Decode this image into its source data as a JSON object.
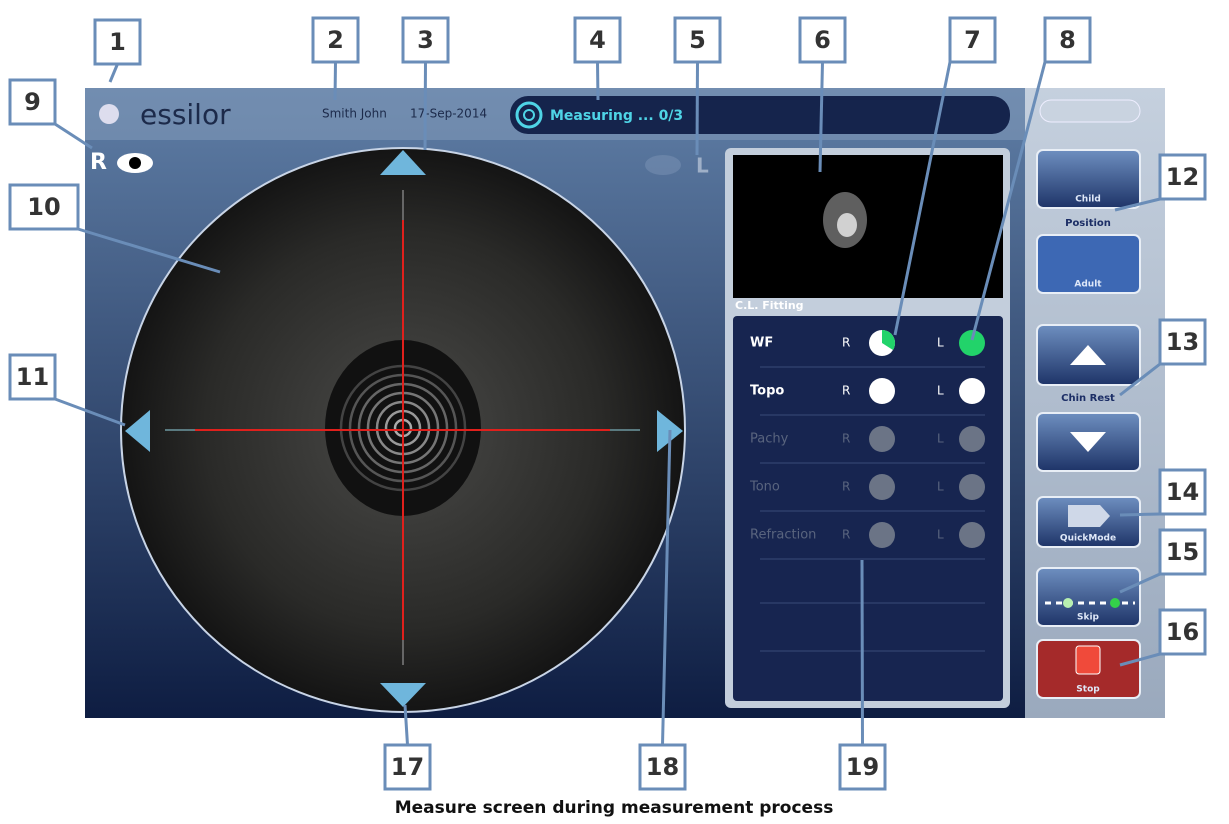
{
  "callouts": [
    "1",
    "2",
    "3",
    "4",
    "5",
    "6",
    "7",
    "8",
    "9",
    "10",
    "11",
    "12",
    "13",
    "14",
    "15",
    "16",
    "17",
    "18",
    "19"
  ],
  "header": {
    "logo": "essilor",
    "patient": "Smith John",
    "date": "17-Sep-2014",
    "status": "Measuring ... 0/3"
  },
  "eyes": {
    "right": "R",
    "left": "L"
  },
  "preview_label": "C.L. Fitting",
  "measurements": [
    {
      "name": "WF",
      "right": "R",
      "left": "L"
    },
    {
      "name": "Topo",
      "right": "R",
      "left": "L"
    },
    {
      "name": "Pachy",
      "right": "R",
      "left": "L"
    },
    {
      "name": "Tono",
      "right": "R",
      "left": "L"
    },
    {
      "name": "Refraction",
      "right": "R",
      "left": "L"
    }
  ],
  "side_buttons": {
    "child": "Child",
    "position": "Position",
    "adult": "Adult",
    "chin_rest": "Chin Rest",
    "quick_mode": "QuickMode",
    "skip": "Skip",
    "stop": "Stop"
  },
  "caption": "Measure screen during measurement process"
}
